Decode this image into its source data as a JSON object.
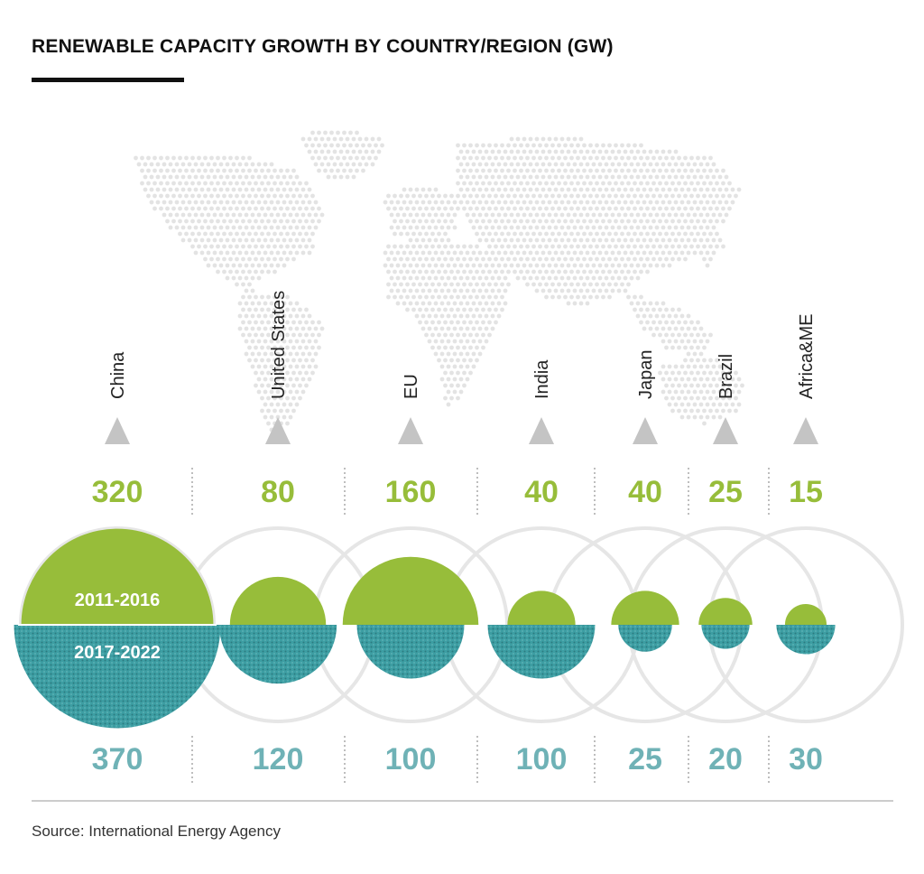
{
  "header": {
    "title": "RENEWABLE CAPACITY GROWTH BY COUNTRY/REGION (GW)"
  },
  "footer": {
    "source": "Source: International Energy Agency"
  },
  "colors": {
    "period1": "#97bd3a",
    "period2": "#3d9ea3",
    "period2_label": "#6fb2b6",
    "map_dots": "#e3e3e3",
    "ring": "#e6e6e6",
    "pointer": "#c4c4c4"
  },
  "chart_data": {
    "type": "semicircle-comparison",
    "title": "RENEWABLE CAPACITY GROWTH BY COUNTRY/REGION (GW)",
    "unit": "GW",
    "categories": [
      "China",
      "United States",
      "EU",
      "India",
      "Japan",
      "Brazil",
      "Africa&ME"
    ],
    "series": [
      {
        "name": "2011-2016",
        "values": [
          320,
          80,
          160,
          40,
          40,
          25,
          15
        ]
      },
      {
        "name": "2017-2022",
        "values": [
          370,
          120,
          100,
          100,
          25,
          20,
          30
        ]
      }
    ],
    "area_proportional": true,
    "background": "dotted world map"
  }
}
